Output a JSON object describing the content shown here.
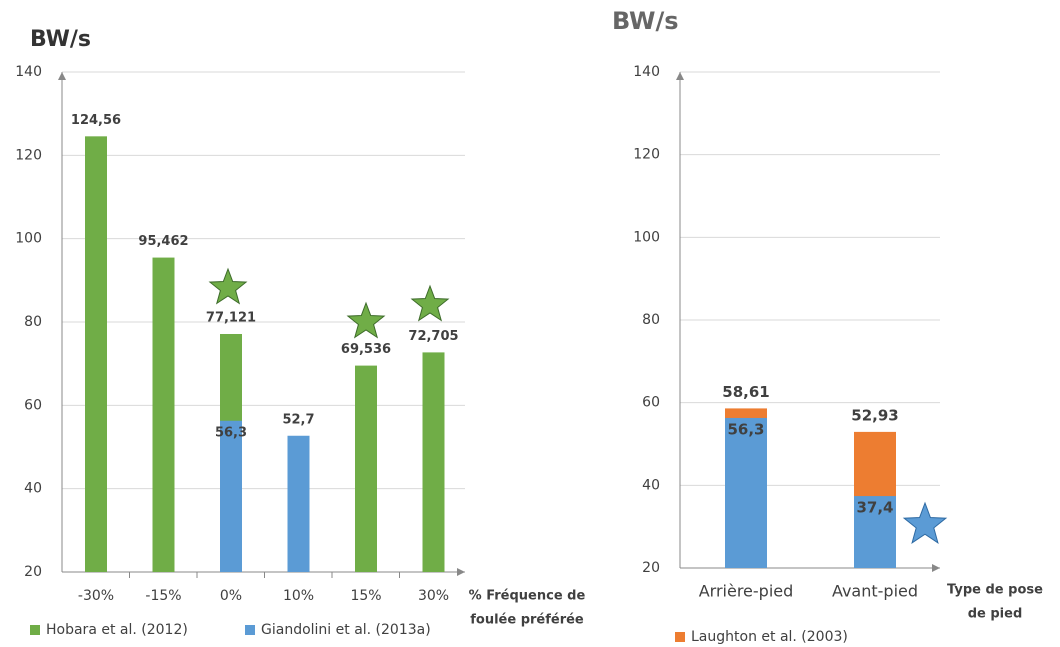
{
  "chart_data": [
    {
      "type": "bar",
      "title": "BW/s",
      "categories": [
        "-30%",
        "-15%",
        "0%",
        "10%",
        "15%",
        "30%"
      ],
      "xlabel": [
        "% Fréquence de",
        "foulée préférée"
      ],
      "series": [
        {
          "name": "Hobara et al. (2012)",
          "color": "#70ad47",
          "values": [
            124.56,
            95.462,
            77.121,
            null,
            69.536,
            72.705
          ],
          "value_labels": [
            "124,56",
            "95,462",
            "77,121",
            null,
            "69,536",
            "72,705"
          ]
        },
        {
          "name": "Giandolini et al. (2013a)",
          "color": "#5b9bd5",
          "values": [
            null,
            null,
            56.3,
            52.7,
            null,
            null
          ],
          "value_labels": [
            null,
            null,
            "56,3",
            "52,7",
            null,
            null
          ]
        }
      ],
      "ylim": [
        20,
        140
      ],
      "yticks": [
        20,
        40,
        60,
        80,
        100,
        120,
        140
      ],
      "grid": true
    },
    {
      "type": "bar",
      "title": "BW/s",
      "categories": [
        "Arrière-pied",
        "Avant-pied"
      ],
      "xlabel": [
        "Type de pose",
        "de pied"
      ],
      "series": [
        {
          "name": "Laughton et al. (2003)",
          "color": "#ed7d31",
          "values": [
            58.61,
            52.93
          ],
          "value_labels": [
            "58,61",
            "52,93"
          ]
        },
        {
          "color": "#5b9bd5",
          "values": [
            56.3,
            37.4
          ],
          "value_labels": [
            "56,3",
            "37,4"
          ]
        }
      ],
      "ylim": [
        20,
        140
      ],
      "yticks": [
        20,
        40,
        60,
        80,
        100,
        120,
        140
      ],
      "grid": true
    }
  ]
}
